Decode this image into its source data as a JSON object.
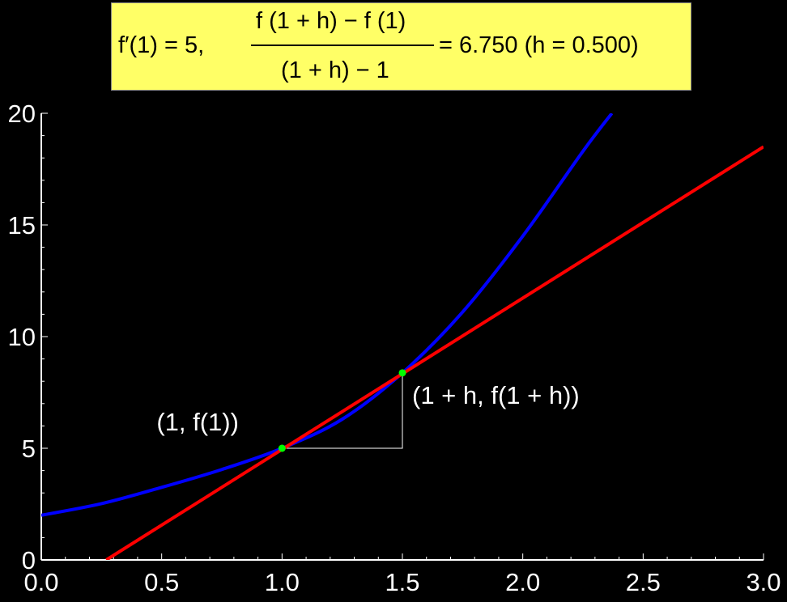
{
  "title": {
    "lhs": "f′(1) = 5,",
    "numerator": "f (1 + h) − f (1)",
    "denominator": "(1 + h) − 1",
    "rhs": "= 6.750 (h = 0.500)"
  },
  "colors": {
    "background": "#000000",
    "title_background": "#ffff66",
    "curve": "#0000ff",
    "tangent": "#ff0000",
    "points": "#00ff00",
    "guide": "#ffffff",
    "axes": "#ffffff"
  },
  "chart_data": {
    "type": "line",
    "title": "f′(1) = 5, (f (1 + h) − f (1)) / ((1 + h) − 1) = 6.750 (h = 0.500)",
    "xlim": [
      0,
      3
    ],
    "ylim": [
      0,
      20
    ],
    "x_ticks": [
      0,
      0.5,
      1,
      1.5,
      2,
      2.5,
      3
    ],
    "x_tick_labels": [
      "0.0",
      "0.5",
      "1.0",
      "1.5",
      "2.0",
      "2.5",
      "3.0"
    ],
    "y_ticks": [
      0,
      5,
      10,
      15,
      20
    ],
    "y_tick_labels": [
      "0",
      "5",
      "10",
      "15",
      "20"
    ],
    "grid": false,
    "series": [
      {
        "color": "#0000ff",
        "x": [
          0,
          0.25,
          0.5,
          0.75,
          1.0,
          1.25,
          1.5,
          1.75,
          2.0,
          2.25,
          2.37
        ],
        "y": [
          2,
          2.52,
          3.25,
          4.05,
          5.0,
          6.3,
          8.375,
          11.1,
          14.5,
          18.3,
          20
        ]
      },
      {
        "color": "#ff0000",
        "x": [
          0.27,
          3.0
        ],
        "y": [
          0.0,
          18.5
        ]
      }
    ],
    "points": [
      {
        "x": 1.0,
        "y": 5.0,
        "label": "(1, f(1))"
      },
      {
        "x": 1.5,
        "y": 8.375,
        "label": "(1 + h, f(1 + h))"
      }
    ],
    "guide_lines": {
      "x0": 1.0,
      "y0": 5.0,
      "x1": 1.5,
      "y1": 8.375
    }
  }
}
